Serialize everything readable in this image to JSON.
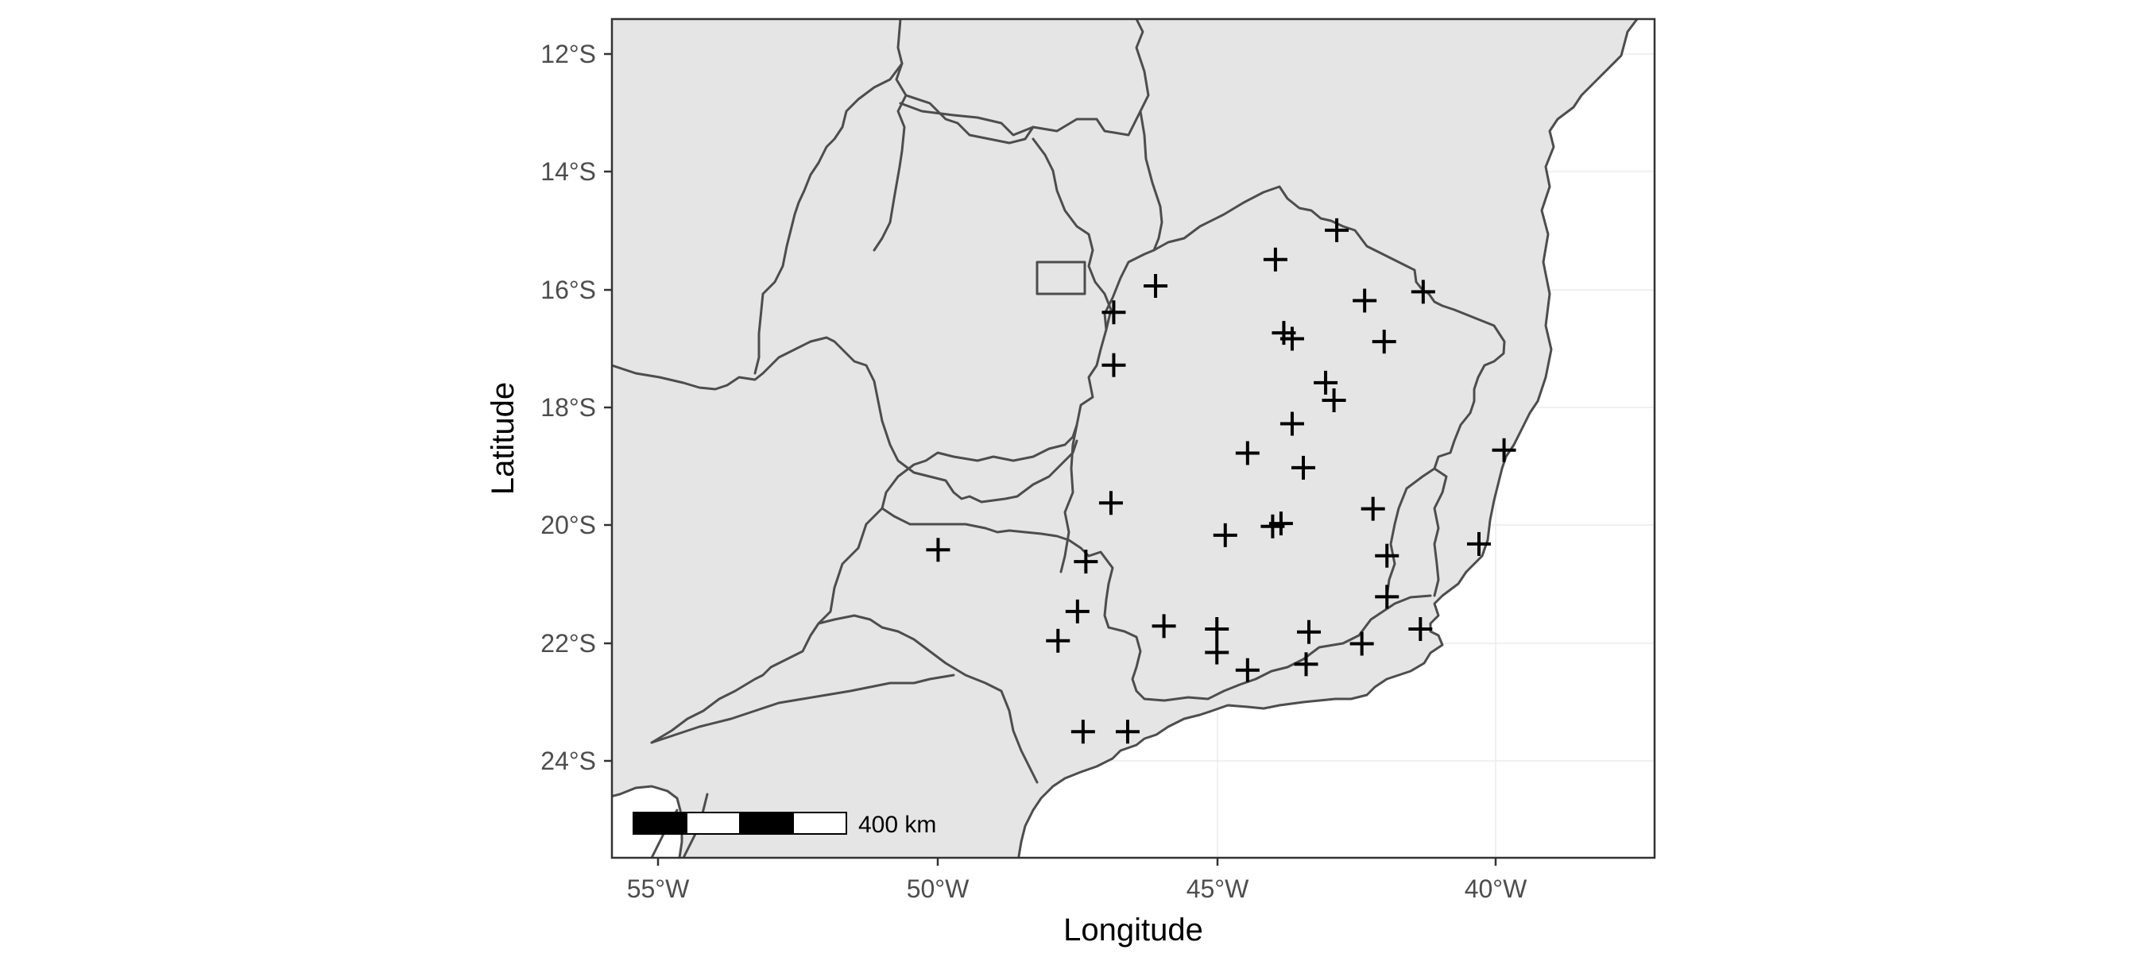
{
  "map": {
    "x_axis_title": "Longitude",
    "y_axis_title": "Latitude",
    "x_ticks": [
      {
        "label": "55°W",
        "value": -55
      },
      {
        "label": "50°W",
        "value": -50
      },
      {
        "label": "45°W",
        "value": -45
      },
      {
        "label": "40°W",
        "value": -40
      }
    ],
    "y_ticks": [
      {
        "label": "12°S",
        "value": -12
      },
      {
        "label": "14°S",
        "value": -14
      },
      {
        "label": "16°S",
        "value": -16
      },
      {
        "label": "18°S",
        "value": -18
      },
      {
        "label": "20°S",
        "value": -20
      },
      {
        "label": "22°S",
        "value": -22
      },
      {
        "label": "24°S",
        "value": -24
      }
    ],
    "xlim": [
      -55.85,
      -37.15
    ],
    "ylim": [
      -25.65,
      -11.35
    ],
    "scale_bar_label": "400 km",
    "land_color": "#e5e5e5",
    "border_color": "#4d4d4d",
    "marker_color": "#000000",
    "marker_shape": "plus",
    "sites": [
      {
        "lon": -42.85,
        "lat": -14.95
      },
      {
        "lon": -43.95,
        "lat": -15.45
      },
      {
        "lon": -46.1,
        "lat": -15.9
      },
      {
        "lon": -41.3,
        "lat": -16.0
      },
      {
        "lon": -42.35,
        "lat": -16.15
      },
      {
        "lon": -46.85,
        "lat": -16.35
      },
      {
        "lon": -43.8,
        "lat": -16.7
      },
      {
        "lon": -43.65,
        "lat": -16.8
      },
      {
        "lon": -42.0,
        "lat": -16.85
      },
      {
        "lon": -46.85,
        "lat": -17.25
      },
      {
        "lon": -43.05,
        "lat": -17.55
      },
      {
        "lon": -42.9,
        "lat": -17.85
      },
      {
        "lon": -43.65,
        "lat": -18.25
      },
      {
        "lon": -44.45,
        "lat": -18.75
      },
      {
        "lon": -43.45,
        "lat": -19.0
      },
      {
        "lon": -39.85,
        "lat": -18.7
      },
      {
        "lon": -46.9,
        "lat": -19.6
      },
      {
        "lon": -42.2,
        "lat": -19.7
      },
      {
        "lon": -43.85,
        "lat": -19.95
      },
      {
        "lon": -44.0,
        "lat": -20.0
      },
      {
        "lon": -44.85,
        "lat": -20.15
      },
      {
        "lon": -40.3,
        "lat": -20.3
      },
      {
        "lon": -50.0,
        "lat": -20.4
      },
      {
        "lon": -41.95,
        "lat": -20.5
      },
      {
        "lon": -47.35,
        "lat": -20.6
      },
      {
        "lon": -41.95,
        "lat": -21.2
      },
      {
        "lon": -47.5,
        "lat": -21.45
      },
      {
        "lon": -45.95,
        "lat": -21.7
      },
      {
        "lon": -41.35,
        "lat": -21.75
      },
      {
        "lon": -45.0,
        "lat": -21.75
      },
      {
        "lon": -43.35,
        "lat": -21.8
      },
      {
        "lon": -47.85,
        "lat": -21.95
      },
      {
        "lon": -42.4,
        "lat": -22.0
      },
      {
        "lon": -45.0,
        "lat": -22.15
      },
      {
        "lon": -43.4,
        "lat": -22.35
      },
      {
        "lon": -44.45,
        "lat": -22.45
      },
      {
        "lon": -47.4,
        "lat": -23.5
      },
      {
        "lon": -46.6,
        "lat": -23.5
      }
    ]
  }
}
